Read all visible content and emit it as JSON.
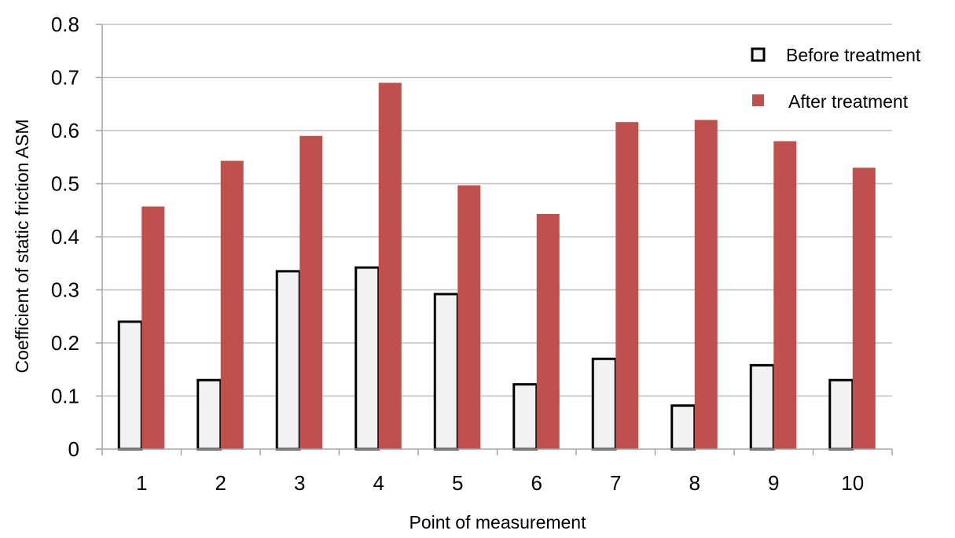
{
  "chart_data": {
    "type": "bar",
    "categories": [
      "1",
      "2",
      "3",
      "4",
      "5",
      "6",
      "7",
      "8",
      "9",
      "10"
    ],
    "series": [
      {
        "name": "Before treatment",
        "values": [
          0.24,
          0.13,
          0.335,
          0.342,
          0.292,
          0.122,
          0.17,
          0.082,
          0.158,
          0.13
        ]
      },
      {
        "name": "After treatment",
        "values": [
          0.457,
          0.543,
          0.59,
          0.69,
          0.497,
          0.443,
          0.616,
          0.62,
          0.58,
          0.53
        ]
      }
    ],
    "xlabel": "Point of measurement",
    "ylabel": "Coefficient of static friction  ASM",
    "ylim": [
      0,
      0.8
    ],
    "yticks": [
      "0",
      "0.1",
      "0.2",
      "0.3",
      "0.4",
      "0.5",
      "0.6",
      "0.7",
      "0.8"
    ],
    "grid": true,
    "legend": "top-right",
    "colors": {
      "before_fill": "#f2f2f2",
      "before_stroke": "#000000",
      "after_fill": "#c0504d",
      "grid": "#c0c0c0",
      "axis": "#a6a6a6"
    }
  }
}
